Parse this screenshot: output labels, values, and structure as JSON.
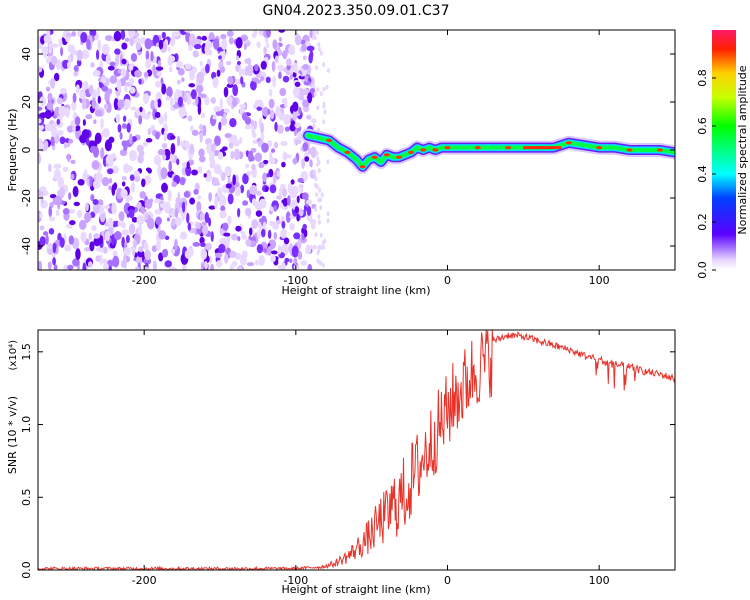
{
  "title": "GN04.2023.350.09.01.C37",
  "chart_data": [
    {
      "type": "heatmap",
      "name": "spectrogram",
      "xlabel": "Height of straight line (km)",
      "ylabel": "Frequency (Hz)",
      "xlim": [
        -270,
        150
      ],
      "ylim": [
        -50,
        50
      ],
      "xticks": [
        -200,
        -100,
        0,
        100
      ],
      "xtick_labels": [
        "-200",
        "-100",
        "0",
        "100"
      ],
      "yticks": [
        -40,
        -20,
        0,
        20,
        40
      ],
      "ytick_labels": [
        "-40",
        "-20",
        "0",
        "20",
        "40"
      ],
      "noise_region_x": [
        -270,
        -88
      ],
      "signal_ridge": {
        "x": [
          -92,
          -85,
          -78,
          -72,
          -66,
          -60,
          -56,
          -52,
          -48,
          -44,
          -40,
          -36,
          -32,
          -28,
          -24,
          -20,
          -16,
          -12,
          -8,
          -4,
          0,
          10,
          20,
          30,
          40,
          50,
          60,
          70,
          80,
          90,
          100,
          110,
          120,
          130,
          140,
          150
        ],
        "y": [
          6,
          5,
          4,
          1,
          -1,
          -4,
          -7,
          -4,
          -3,
          -5,
          -2,
          -3,
          -3,
          -2,
          -1,
          1,
          0,
          1,
          0,
          1,
          1,
          1,
          1,
          1,
          1,
          1,
          1,
          1,
          3,
          2,
          1,
          1,
          0,
          0,
          0,
          -1
        ]
      },
      "colorbar": {
        "label": "Normalized spectral amplitude",
        "range": [
          0,
          1
        ],
        "ticks": [
          0.0,
          0.2,
          0.4,
          0.6,
          0.8
        ],
        "tick_labels": [
          "0.0",
          "0.2",
          "0.4",
          "0.6",
          "0.8"
        ]
      },
      "grid": false
    },
    {
      "type": "line",
      "name": "snr",
      "xlabel": "Height of straight line (km)",
      "ylabel": "SNR (10 * v/v)",
      "multiplier": "(x10⁴)",
      "xlim": [
        -270,
        150
      ],
      "ylim": [
        0,
        1.65
      ],
      "xticks": [
        -200,
        -100,
        0,
        100
      ],
      "xtick_labels": [
        "-200",
        "-100",
        "0",
        "100"
      ],
      "yticks": [
        0.0,
        0.5,
        1.0,
        1.5
      ],
      "ytick_labels": [
        "0.0",
        "0.5",
        "1.0",
        "1.5"
      ],
      "color": "#e8332b",
      "series": [
        {
          "x": [
            -270,
            -250,
            -200,
            -150,
            -100,
            -85,
            -75,
            -65,
            -58,
            -50,
            -45,
            -40,
            -35,
            -30,
            -25,
            -20,
            -15,
            -10,
            -5,
            0,
            5,
            10,
            15,
            20,
            25,
            30,
            35,
            40,
            50,
            60,
            70,
            80,
            90,
            100,
            110,
            120,
            130,
            140,
            150
          ],
          "values": [
            0.01,
            0.01,
            0.01,
            0.01,
            0.01,
            0.02,
            0.05,
            0.12,
            0.2,
            0.3,
            0.4,
            0.45,
            0.55,
            0.6,
            0.7,
            0.8,
            0.9,
            1.0,
            1.1,
            1.2,
            1.3,
            1.35,
            1.45,
            1.5,
            1.55,
            1.58,
            1.6,
            1.62,
            1.61,
            1.58,
            1.55,
            1.52,
            1.48,
            1.45,
            1.42,
            1.4,
            1.37,
            1.35,
            1.32
          ]
        }
      ],
      "grid": false
    }
  ]
}
